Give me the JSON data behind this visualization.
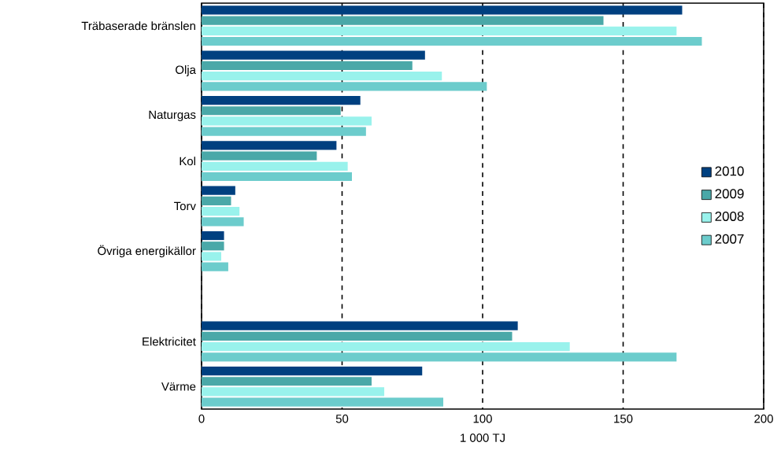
{
  "chart_data": {
    "type": "bar",
    "orientation": "horizontal",
    "xlabel": "1 000 TJ",
    "categories": [
      "Träbaserade bränslen",
      "Olja",
      "Naturgas",
      "Kol",
      "Torv",
      "Övriga energikällor",
      null,
      "Elektricitet",
      "Värme"
    ],
    "series": [
      {
        "name": "2010",
        "color": "#004080",
        "values": [
          171,
          79.5,
          56.5,
          48,
          12,
          8,
          null,
          112.5,
          78.5
        ]
      },
      {
        "name": "2009",
        "color": "#4aa8a8",
        "values": [
          143,
          75,
          49.5,
          41,
          10.5,
          8,
          null,
          110.5,
          60.5
        ]
      },
      {
        "name": "2008",
        "color": "#99f2ec",
        "values": [
          169,
          85.5,
          60.5,
          52,
          13.5,
          7,
          null,
          131,
          65
        ]
      },
      {
        "name": "2007",
        "color": "#6ccccc",
        "values": [
          178,
          101.5,
          58.5,
          53.5,
          15,
          9.5,
          null,
          169,
          86
        ]
      }
    ],
    "xlim": [
      0,
      200
    ],
    "xticks": [
      0,
      50,
      100,
      150,
      200
    ],
    "grid": "x",
    "legend": "right"
  }
}
